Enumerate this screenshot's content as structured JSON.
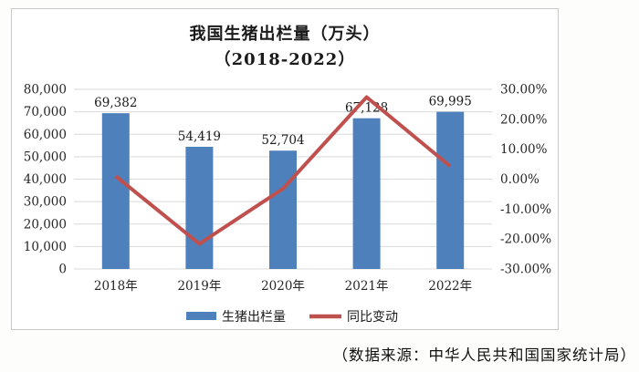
{
  "source_note": "（数据来源：中华人民共和国国家统计局）",
  "chart_data": {
    "type": "bar",
    "title": "我国生猪出栏量（万头）",
    "subtitle": "（2018-2022）",
    "categories": [
      "2018年",
      "2019年",
      "2020年",
      "2021年",
      "2022年"
    ],
    "series": [
      {
        "name": "生猪出栏量",
        "type": "bar",
        "axis": "left",
        "color": "#4E81BC",
        "values": [
          69382,
          54419,
          52704,
          67128,
          69995
        ],
        "labels": [
          "69,382",
          "54,419",
          "52,704",
          "67,128",
          "69,995"
        ]
      },
      {
        "name": "同比变动",
        "type": "line",
        "axis": "right",
        "color": "#C0504D",
        "values": [
          1.0,
          -21.6,
          -3.2,
          27.4,
          4.3
        ]
      }
    ],
    "left_axis": {
      "min": 0,
      "max": 80000,
      "step": 10000,
      "ticks": [
        "0",
        "10,000",
        "20,000",
        "30,000",
        "40,000",
        "50,000",
        "60,000",
        "70,000",
        "80,000"
      ]
    },
    "right_axis": {
      "min": -30,
      "max": 30,
      "step": 10,
      "ticks": [
        "-30.00%",
        "-20.00%",
        "-10.00%",
        "0.00%",
        "10.00%",
        "20.00%",
        "30.00%"
      ]
    },
    "legend": [
      {
        "label": "生猪出栏量",
        "swatch": "rect",
        "color": "#4E81BC"
      },
      {
        "label": "同比变动",
        "swatch": "line",
        "color": "#C0504D"
      }
    ],
    "grid": true,
    "gridline_color": "#D9D9D9",
    "text_color": "#262626",
    "legend_position": "bottom"
  }
}
